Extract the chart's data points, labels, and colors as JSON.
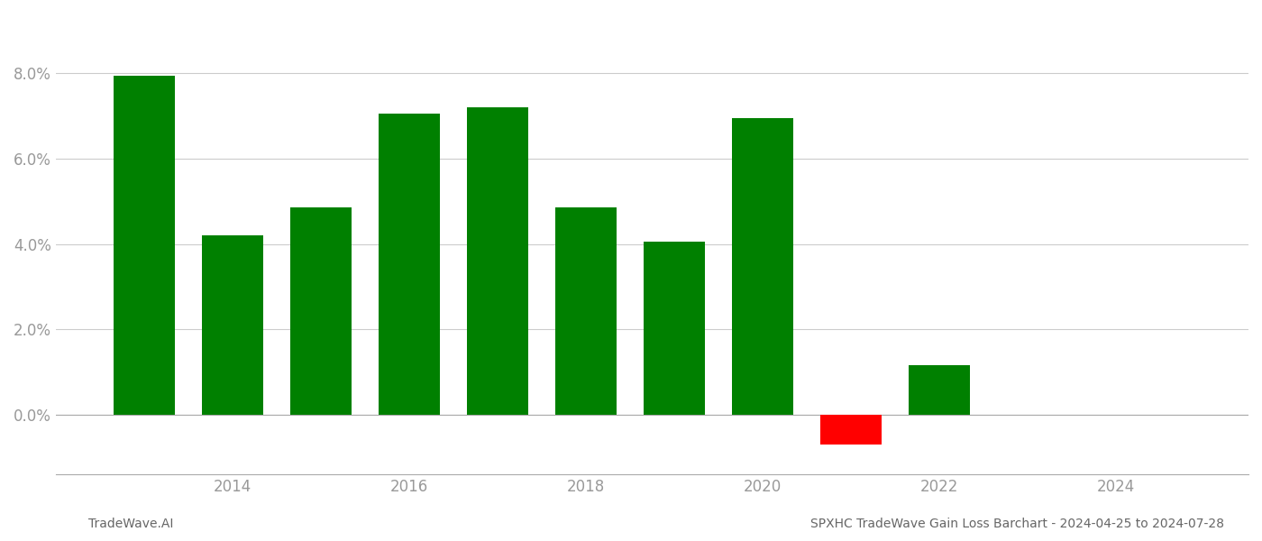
{
  "years": [
    2013,
    2014,
    2015,
    2016,
    2017,
    2018,
    2019,
    2020,
    2021,
    2022
  ],
  "values": [
    0.0795,
    0.042,
    0.0485,
    0.0705,
    0.072,
    0.0485,
    0.0405,
    0.0695,
    -0.007,
    0.0115
  ],
  "colors": [
    "#008000",
    "#008000",
    "#008000",
    "#008000",
    "#008000",
    "#008000",
    "#008000",
    "#008000",
    "#ff0000",
    "#008000"
  ],
  "title": "SPXHC TradeWave Gain Loss Barchart - 2024-04-25 to 2024-07-28",
  "footer_left": "TradeWave.AI",
  "bar_width": 0.7,
  "xlim_min": 2012.0,
  "xlim_max": 2025.5,
  "xtick_positions": [
    2014,
    2016,
    2018,
    2020,
    2022,
    2024
  ],
  "ylim_min": -0.014,
  "ylim_max": 0.094,
  "ytick_values": [
    0.0,
    0.02,
    0.04,
    0.06,
    0.08
  ],
  "grid_color": "#cccccc",
  "axis_label_color": "#999999",
  "title_color": "#666666",
  "footer_color": "#666666",
  "background_color": "#ffffff",
  "tick_fontsize": 12,
  "footer_fontsize": 10,
  "title_fontsize": 10
}
